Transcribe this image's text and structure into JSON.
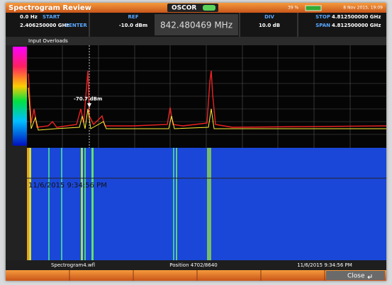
{
  "title_bar": {
    "title": "Spectrogram Review",
    "logo": "OSCOR",
    "battery": "39 %",
    "datetime": "8 Nov 2015, 19:09"
  },
  "header": {
    "start_value": "0.0 Hz",
    "start_label": "START",
    "center_value": "2.406250000 GHz",
    "center_label": "CENTER",
    "ref_label": "REF",
    "ref_value": "-10.0 dBm",
    "frequency": "842.480469 MHz",
    "div_label": "DIV",
    "div_value": "10.0 dB",
    "stop_label": "STOP",
    "stop_value": "4.812500000 GHz",
    "span_label": "SPAN",
    "span_value": "4.812500000 GHz"
  },
  "spectrum": {
    "status": "Input Overloads",
    "marker_label": "-70.7 dBm"
  },
  "spectrogram": {
    "timestamp": "11/6/2015 9:34:56 PM"
  },
  "footer": {
    "file": "Spectrogram4.wfl",
    "position": "Position 4702/8640",
    "time": "11/6/2015 9:34:56 PM"
  },
  "buttons": {
    "close": "Close"
  }
}
